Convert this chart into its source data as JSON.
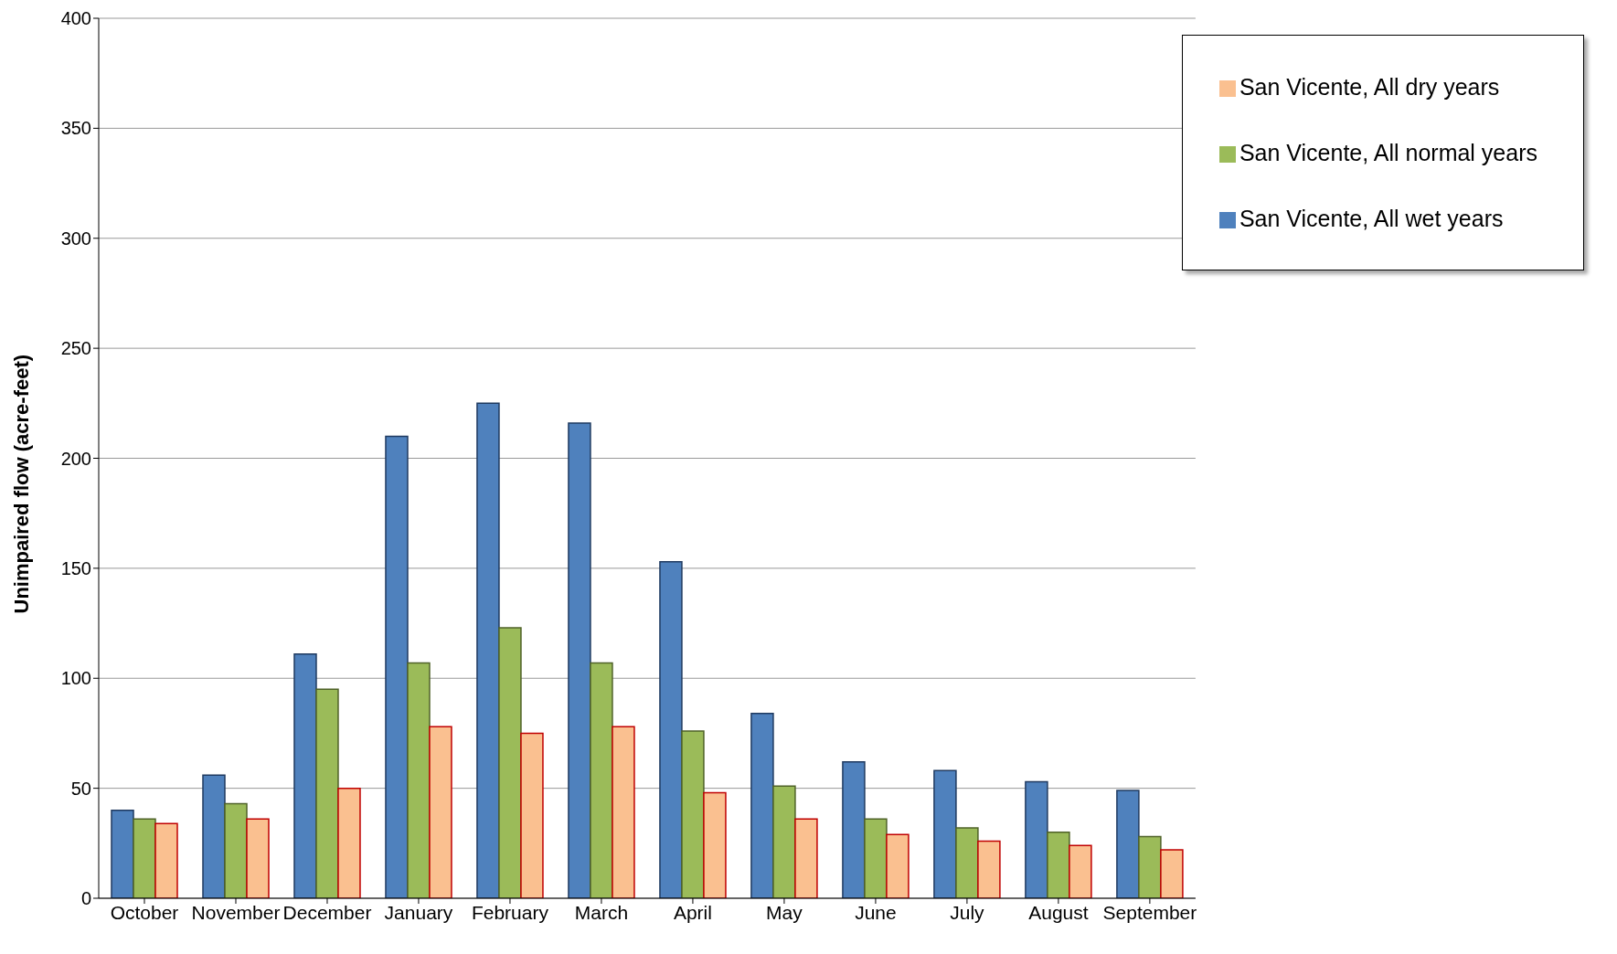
{
  "chart_data": {
    "type": "bar",
    "ylabel": "Unimpaired flow (acre-feet)",
    "categories": [
      "October",
      "November",
      "December",
      "January",
      "February",
      "March",
      "April",
      "May",
      "June",
      "July",
      "August",
      "September"
    ],
    "series": [
      {
        "name": "San Vicente, All wet years",
        "color": "#4f81bd",
        "values": [
          40,
          56,
          111,
          210,
          225,
          216,
          153,
          84,
          62,
          58,
          53,
          49
        ]
      },
      {
        "name": "San Vicente, All normal years",
        "color": "#9bbb59",
        "values": [
          36,
          43,
          95,
          107,
          123,
          107,
          76,
          51,
          36,
          32,
          30,
          28
        ]
      },
      {
        "name": "San Vicente, All dry years",
        "color": "#fac090",
        "values": [
          34,
          36,
          50,
          78,
          75,
          78,
          48,
          36,
          29,
          26,
          24,
          22
        ]
      }
    ],
    "ylim": [
      0,
      400
    ],
    "yticks": [
      0,
      50,
      100,
      150,
      200,
      250,
      300,
      350,
      400
    ],
    "grid": "y",
    "legend": "top right"
  }
}
